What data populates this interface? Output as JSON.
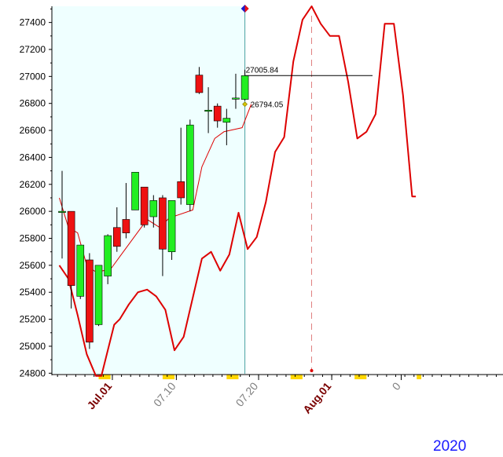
{
  "chart_data": {
    "type": "candlestick",
    "ylim": [
      24780,
      27500
    ],
    "y_ticks": [
      24800,
      25000,
      25200,
      25400,
      25600,
      25800,
      26000,
      26200,
      26400,
      26600,
      26800,
      27000,
      27200,
      27400
    ],
    "x_labels": [
      {
        "label": "Jul.01",
        "at": 5,
        "color": "#7a0000",
        "bold": true
      },
      {
        "label": "07.10",
        "at": 12,
        "color": "#808080",
        "bold": false
      },
      {
        "label": "07.20",
        "at": 21,
        "color": "#808080",
        "bold": false
      },
      {
        "label": "Aug.01",
        "at": 29,
        "color": "#7a0000",
        "bold": true
      },
      {
        "label": "0",
        "at": 36.6,
        "color": "#808080",
        "bold": false
      }
    ],
    "year": "2020",
    "candles": [
      {
        "o": 26000,
        "h": 26300,
        "l": 25650,
        "c": 26000
      },
      {
        "o": 26000,
        "h": 26000,
        "l": 25280,
        "c": 25450
      },
      {
        "o": 25370,
        "h": 25750,
        "l": 25350,
        "c": 25750
      },
      {
        "o": 25640,
        "h": 25690,
        "l": 24980,
        "c": 25030
      },
      {
        "o": 25160,
        "h": 25600,
        "l": 25150,
        "c": 25600
      },
      {
        "o": 25520,
        "h": 25830,
        "l": 25460,
        "c": 25820
      },
      {
        "o": 25880,
        "h": 26030,
        "l": 25700,
        "c": 25740
      },
      {
        "o": 25940,
        "h": 26210,
        "l": 25800,
        "c": 25840
      },
      {
        "o": 26010,
        "h": 26290,
        "l": 26010,
        "c": 26290
      },
      {
        "o": 26180,
        "h": 26180,
        "l": 25880,
        "c": 25900
      },
      {
        "o": 25960,
        "h": 26120,
        "l": 25880,
        "c": 26080
      },
      {
        "o": 26100,
        "h": 26120,
        "l": 25520,
        "c": 25720
      },
      {
        "o": 25700,
        "h": 26080,
        "l": 25640,
        "c": 26080
      },
      {
        "o": 26220,
        "h": 26620,
        "l": 26050,
        "c": 26100
      },
      {
        "o": 26050,
        "h": 26680,
        "l": 26000,
        "c": 26640
      },
      {
        "o": 27010,
        "h": 27070,
        "l": 26870,
        "c": 26880
      },
      {
        "o": 26750,
        "h": 26920,
        "l": 26580,
        "c": 26750
      },
      {
        "o": 26780,
        "h": 26800,
        "l": 26620,
        "c": 26670
      },
      {
        "o": 26660,
        "h": 26760,
        "l": 26490,
        "c": 26690
      },
      {
        "o": 26840,
        "h": 27020,
        "l": 26760,
        "c": 26840
      },
      {
        "o": 26830,
        "h": 27050,
        "l": 26820,
        "c": 27006
      }
    ],
    "moving_average": [
      {
        "x": -0.3,
        "y": 26100
      },
      {
        "x": 0.7,
        "y": 25880
      },
      {
        "x": 1.7,
        "y": 25840
      },
      {
        "x": 2.7,
        "y": 25600
      },
      {
        "x": 3.7,
        "y": 25550
      },
      {
        "x": 5.3,
        "y": 25570
      },
      {
        "x": 6.7,
        "y": 25700
      },
      {
        "x": 9.3,
        "y": 25940
      },
      {
        "x": 10.7,
        "y": 25880
      },
      {
        "x": 11.7,
        "y": 25950
      },
      {
        "x": 14.3,
        "y": 26010
      },
      {
        "x": 15.3,
        "y": 26330
      },
      {
        "x": 16.7,
        "y": 26540
      },
      {
        "x": 17.7,
        "y": 26590
      },
      {
        "x": 19.7,
        "y": 26620
      },
      {
        "x": 20.7,
        "y": 26794
      }
    ],
    "upper_band": [
      {
        "x": -0.3,
        "y": 25600
      },
      {
        "x": 0.7,
        "y": 25500
      },
      {
        "x": 1.7,
        "y": 25230
      },
      {
        "x": 2.7,
        "y": 24940
      },
      {
        "x": 3.7,
        "y": 24780
      },
      {
        "x": 4.3,
        "y": 24780
      },
      {
        "x": 5.7,
        "y": 25160
      },
      {
        "x": 6.3,
        "y": 25200
      },
      {
        "x": 7.3,
        "y": 25310
      },
      {
        "x": 8.3,
        "y": 25400
      },
      {
        "x": 9.3,
        "y": 25420
      },
      {
        "x": 10.3,
        "y": 25370
      },
      {
        "x": 11.3,
        "y": 25270
      },
      {
        "x": 12.3,
        "y": 24970
      },
      {
        "x": 13.3,
        "y": 25070
      },
      {
        "x": 14.3,
        "y": 25360
      },
      {
        "x": 15.3,
        "y": 25650
      },
      {
        "x": 16.3,
        "y": 25700
      },
      {
        "x": 17.3,
        "y": 25560
      },
      {
        "x": 18.3,
        "y": 25680
      },
      {
        "x": 19.3,
        "y": 25990
      },
      {
        "x": 20.3,
        "y": 25720
      },
      {
        "x": 21.3,
        "y": 25810
      },
      {
        "x": 22.3,
        "y": 26070
      },
      {
        "x": 23.3,
        "y": 26440
      },
      {
        "x": 24.3,
        "y": 26550
      },
      {
        "x": 25.3,
        "y": 27110
      },
      {
        "x": 26.3,
        "y": 27420
      },
      {
        "x": 27.3,
        "y": 27520
      },
      {
        "x": 28.3,
        "y": 27390
      },
      {
        "x": 29.3,
        "y": 27300
      },
      {
        "x": 30.3,
        "y": 27300
      },
      {
        "x": 31.3,
        "y": 26960
      },
      {
        "x": 32.3,
        "y": 26540
      },
      {
        "x": 33.3,
        "y": 26590
      },
      {
        "x": 34.3,
        "y": 26720
      },
      {
        "x": 35.3,
        "y": 27390
      },
      {
        "x": 36.3,
        "y": 27390
      },
      {
        "x": 37.3,
        "y": 26860
      },
      {
        "x": 38.3,
        "y": 26110
      },
      {
        "x": 38.7,
        "y": 26110
      }
    ],
    "annotations": {
      "last_close_label": "27005.84",
      "ma_label": "26794.05"
    }
  },
  "colors": {
    "up": "#22ee22",
    "down": "#ee1111",
    "shade": "#efffff",
    "line": "#dd0000",
    "vline": "#4aa0a0",
    "weekend": "#ffd700"
  },
  "weekend_marks": [
    [
      4.0,
      5.3
    ],
    [
      11.0,
      12.3
    ],
    [
      18.0,
      19.3
    ],
    [
      25.0,
      26.3
    ],
    [
      32.0,
      33.3
    ],
    [
      38.8,
      39.3
    ]
  ]
}
